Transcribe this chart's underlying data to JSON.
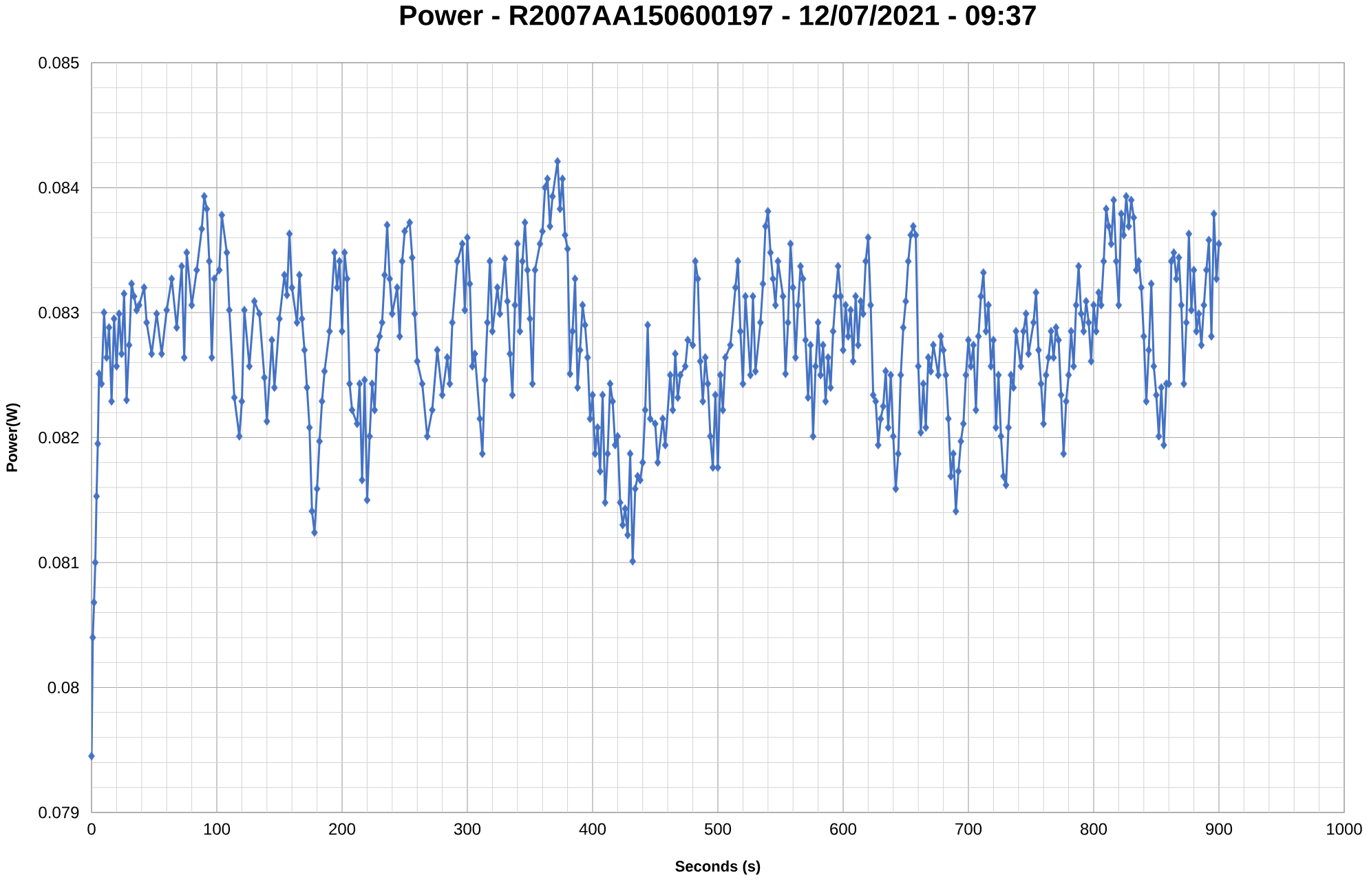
{
  "chart_data": {
    "type": "line",
    "title": "Power - R2007AA150600197 - 12/07/2021 - 09:37",
    "xlabel": "Seconds (s)",
    "ylabel": "Power(W)",
    "x": [
      0,
      1,
      2,
      3,
      4,
      5,
      6,
      8,
      10,
      12,
      14,
      16,
      18,
      20,
      22,
      24,
      26,
      28,
      30,
      32,
      34,
      36,
      38,
      42,
      44,
      48,
      52,
      56,
      60,
      64,
      68,
      72,
      74,
      76,
      80,
      84,
      88,
      90,
      92,
      94,
      96,
      98,
      102,
      104,
      108,
      110,
      114,
      118,
      120,
      122,
      126,
      130,
      134,
      138,
      140,
      144,
      146,
      150,
      154,
      156,
      158,
      160,
      164,
      166,
      168,
      170,
      172,
      174,
      176,
      178,
      180,
      182,
      184,
      186,
      190,
      194,
      196,
      198,
      200,
      202,
      204,
      206,
      208,
      212,
      214,
      216,
      218,
      220,
      222,
      224,
      226,
      228,
      230,
      232,
      234,
      236,
      238,
      240,
      244,
      246,
      248,
      250,
      254,
      256,
      258,
      260,
      264,
      268,
      272,
      276,
      280,
      284,
      286,
      288,
      292,
      296,
      298,
      300,
      302,
      304,
      306,
      310,
      312,
      314,
      316,
      318,
      320,
      324,
      326,
      330,
      332,
      334,
      336,
      338,
      340,
      342,
      344,
      346,
      348,
      350,
      352,
      354,
      358,
      360,
      362,
      364,
      366,
      368,
      372,
      374,
      376,
      378,
      380,
      382,
      384,
      386,
      388,
      390,
      392,
      394,
      396,
      398,
      400,
      402,
      404,
      406,
      408,
      410,
      412,
      414,
      416,
      418,
      420,
      422,
      424,
      426,
      428,
      430,
      432,
      434,
      436,
      438,
      440,
      442,
      444,
      446,
      450,
      452,
      456,
      458,
      462,
      464,
      466,
      468,
      470,
      474,
      476,
      480,
      482,
      484,
      486,
      488,
      490,
      492,
      494,
      496,
      498,
      500,
      502,
      504,
      506,
      510,
      514,
      516,
      518,
      520,
      522,
      526,
      528,
      530,
      534,
      536,
      538,
      540,
      542,
      544,
      546,
      548,
      552,
      554,
      556,
      558,
      560,
      562,
      564,
      566,
      568,
      570,
      572,
      574,
      576,
      578,
      580,
      582,
      584,
      586,
      588,
      590,
      592,
      594,
      596,
      598,
      600,
      602,
      604,
      606,
      608,
      610,
      612,
      614,
      616,
      618,
      620,
      622,
      624,
      626,
      628,
      630,
      632,
      634,
      636,
      638,
      640,
      642,
      644,
      646,
      648,
      650,
      652,
      654,
      656,
      658,
      660,
      662,
      664,
      666,
      668,
      670,
      672,
      676,
      678,
      680,
      682,
      684,
      686,
      688,
      690,
      692,
      694,
      696,
      698,
      700,
      702,
      704,
      706,
      708,
      710,
      712,
      714,
      716,
      718,
      720,
      722,
      724,
      726,
      728,
      730,
      732,
      734,
      736,
      738,
      742,
      744,
      746,
      748,
      752,
      754,
      756,
      758,
      760,
      762,
      764,
      766,
      768,
      770,
      772,
      774,
      776,
      778,
      780,
      782,
      784,
      786,
      788,
      790,
      792,
      794,
      796,
      798,
      800,
      802,
      804,
      806,
      808,
      810,
      812,
      814,
      816,
      818,
      820,
      822,
      824,
      826,
      828,
      830,
      832,
      834,
      836,
      838,
      840,
      842,
      844,
      846,
      848,
      850,
      852,
      854,
      856,
      858,
      860,
      862,
      864,
      866,
      868,
      870,
      872,
      874,
      876,
      878,
      880,
      882,
      884,
      886,
      888,
      890,
      892,
      894,
      896,
      898,
      900
    ],
    "series": [
      {
        "color": "#4472c4",
        "values": [
          0.07945,
          0.0804,
          0.08068,
          0.081,
          0.08153,
          0.08195,
          0.08251,
          0.08243,
          0.083,
          0.08264,
          0.08288,
          0.08229,
          0.08295,
          0.08257,
          0.08299,
          0.08267,
          0.08315,
          0.0823,
          0.08274,
          0.08323,
          0.08313,
          0.08302,
          0.08306,
          0.0832,
          0.08292,
          0.08267,
          0.08299,
          0.08267,
          0.08302,
          0.08327,
          0.08288,
          0.08337,
          0.08264,
          0.08348,
          0.08306,
          0.08334,
          0.08367,
          0.08393,
          0.08383,
          0.08341,
          0.08264,
          0.08327,
          0.08334,
          0.08378,
          0.08348,
          0.08302,
          0.08232,
          0.08201,
          0.08229,
          0.08302,
          0.08257,
          0.08309,
          0.08299,
          0.08248,
          0.08213,
          0.08278,
          0.0824,
          0.08295,
          0.0833,
          0.08314,
          0.08363,
          0.0832,
          0.08292,
          0.0833,
          0.08295,
          0.0827,
          0.0824,
          0.08208,
          0.08141,
          0.08124,
          0.08159,
          0.08197,
          0.08229,
          0.08253,
          0.08285,
          0.08348,
          0.0832,
          0.08341,
          0.08285,
          0.08348,
          0.08327,
          0.08243,
          0.08222,
          0.08211,
          0.08243,
          0.08166,
          0.08246,
          0.0815,
          0.08201,
          0.08243,
          0.08222,
          0.0827,
          0.08281,
          0.08292,
          0.0833,
          0.0837,
          0.08327,
          0.08299,
          0.0832,
          0.08281,
          0.08341,
          0.08365,
          0.08372,
          0.08344,
          0.08299,
          0.08261,
          0.08243,
          0.08201,
          0.08222,
          0.0827,
          0.08234,
          0.08264,
          0.08243,
          0.08292,
          0.08341,
          0.08355,
          0.08302,
          0.0836,
          0.08323,
          0.08257,
          0.08267,
          0.08215,
          0.08187,
          0.08246,
          0.08292,
          0.08341,
          0.08285,
          0.0832,
          0.08299,
          0.08343,
          0.08309,
          0.08267,
          0.08234,
          0.08306,
          0.08355,
          0.08285,
          0.08341,
          0.08372,
          0.08334,
          0.08295,
          0.08243,
          0.08334,
          0.08355,
          0.08365,
          0.084,
          0.08407,
          0.08369,
          0.08393,
          0.08421,
          0.08383,
          0.08407,
          0.08362,
          0.08351,
          0.08251,
          0.08285,
          0.08327,
          0.0824,
          0.0827,
          0.08306,
          0.0829,
          0.08264,
          0.08215,
          0.08234,
          0.08187,
          0.08208,
          0.08173,
          0.08234,
          0.08148,
          0.08187,
          0.08243,
          0.08229,
          0.08194,
          0.08201,
          0.08148,
          0.0813,
          0.08143,
          0.08122,
          0.08187,
          0.08101,
          0.08159,
          0.08169,
          0.08166,
          0.0818,
          0.08222,
          0.0829,
          0.08215,
          0.08211,
          0.0818,
          0.08215,
          0.08194,
          0.0825,
          0.08222,
          0.08267,
          0.08232,
          0.0825,
          0.08257,
          0.08278,
          0.08274,
          0.08341,
          0.08327,
          0.08261,
          0.08229,
          0.08264,
          0.08243,
          0.08201,
          0.08176,
          0.08234,
          0.08176,
          0.0825,
          0.08222,
          0.08264,
          0.08274,
          0.0832,
          0.08341,
          0.08285,
          0.08243,
          0.08313,
          0.0825,
          0.08313,
          0.08253,
          0.08292,
          0.08323,
          0.08369,
          0.08381,
          0.08348,
          0.08327,
          0.08306,
          0.08341,
          0.08313,
          0.08251,
          0.08292,
          0.08355,
          0.0832,
          0.08264,
          0.08306,
          0.08337,
          0.08327,
          0.08278,
          0.08232,
          0.08274,
          0.08201,
          0.08257,
          0.08292,
          0.0825,
          0.08274,
          0.08229,
          0.08264,
          0.0824,
          0.08285,
          0.08313,
          0.08337,
          0.08313,
          0.0827,
          0.08306,
          0.08281,
          0.08302,
          0.08261,
          0.08313,
          0.08274,
          0.08309,
          0.08299,
          0.08341,
          0.0836,
          0.08306,
          0.08234,
          0.08229,
          0.08194,
          0.08215,
          0.08225,
          0.08253,
          0.08208,
          0.0825,
          0.08201,
          0.08159,
          0.08187,
          0.0825,
          0.08288,
          0.08309,
          0.08341,
          0.08362,
          0.08369,
          0.08362,
          0.08257,
          0.08204,
          0.08243,
          0.08208,
          0.08264,
          0.08253,
          0.08274,
          0.0825,
          0.08281,
          0.0827,
          0.0825,
          0.08215,
          0.08169,
          0.08187,
          0.08141,
          0.08173,
          0.08197,
          0.08211,
          0.0825,
          0.08278,
          0.08257,
          0.08274,
          0.08222,
          0.08281,
          0.08313,
          0.08332,
          0.08285,
          0.08306,
          0.08257,
          0.08278,
          0.08208,
          0.0825,
          0.08201,
          0.08169,
          0.08162,
          0.08208,
          0.0825,
          0.0824,
          0.08285,
          0.08257,
          0.08285,
          0.08299,
          0.08267,
          0.08292,
          0.08316,
          0.0827,
          0.08243,
          0.08211,
          0.0825,
          0.08264,
          0.08285,
          0.08264,
          0.08288,
          0.08278,
          0.08234,
          0.08187,
          0.08229,
          0.0825,
          0.08285,
          0.08257,
          0.08306,
          0.08337,
          0.08299,
          0.08285,
          0.08309,
          0.08292,
          0.08261,
          0.08306,
          0.08285,
          0.08316,
          0.08306,
          0.08341,
          0.08383,
          0.08369,
          0.08355,
          0.0839,
          0.08341,
          0.08306,
          0.08379,
          0.08362,
          0.08393,
          0.08369,
          0.0839,
          0.08376,
          0.08334,
          0.08341,
          0.0832,
          0.08281,
          0.08229,
          0.0827,
          0.08323,
          0.08257,
          0.08234,
          0.08201,
          0.0824,
          0.08194,
          0.08243,
          0.08243,
          0.08341,
          0.08348,
          0.08327,
          0.08344,
          0.08306,
          0.08243,
          0.08292,
          0.08363,
          0.08302,
          0.08334,
          0.08285,
          0.08299,
          0.08274,
          0.08306,
          0.08334,
          0.08358,
          0.08281,
          0.08379,
          0.08327,
          0.08355
        ]
      }
    ],
    "xlim": [
      0,
      1000
    ],
    "ylim": [
      0.079,
      0.085
    ],
    "xticks": [
      0,
      {
        "value": 20,
        "label": null
      },
      {
        "value": 40,
        "label": null
      },
      {
        "value": 60,
        "label": null
      },
      {
        "value": 80,
        "label": null
      },
      100,
      {
        "value": 120,
        "label": null
      },
      {
        "value": 140,
        "label": null
      },
      {
        "value": 160,
        "label": null
      },
      {
        "value": 180,
        "label": null
      },
      200,
      {
        "value": 220,
        "label": null
      },
      {
        "value": 240,
        "label": null
      },
      {
        "value": 260,
        "label": null
      },
      {
        "value": 280,
        "label": null
      },
      300,
      {
        "value": 320,
        "label": null
      },
      {
        "value": 340,
        "label": null
      },
      {
        "value": 360,
        "label": null
      },
      {
        "value": 380,
        "label": null
      },
      400,
      {
        "value": 420,
        "label": null
      },
      {
        "value": 440,
        "label": null
      },
      {
        "value": 460,
        "label": null
      },
      {
        "value": 480,
        "label": null
      },
      500,
      {
        "value": 520,
        "label": null
      },
      {
        "value": 540,
        "label": null
      },
      {
        "value": 560,
        "label": null
      },
      {
        "value": 580,
        "label": null
      },
      600,
      {
        "value": 620,
        "label": null
      },
      {
        "value": 640,
        "label": null
      },
      {
        "value": 660,
        "label": null
      },
      {
        "value": 680,
        "label": null
      },
      700,
      {
        "value": 720,
        "label": null
      },
      {
        "value": 740,
        "label": null
      },
      {
        "value": 760,
        "label": null
      },
      {
        "value": 780,
        "label": null
      },
      800,
      {
        "value": 820,
        "label": null
      },
      {
        "value": 840,
        "label": null
      },
      {
        "value": 860,
        "label": null
      },
      {
        "value": 880,
        "label": null
      },
      900,
      {
        "value": 920,
        "label": null
      },
      {
        "value": 940,
        "label": null
      },
      {
        "value": 960,
        "label": null
      },
      {
        "value": 980,
        "label": null
      },
      1000
    ],
    "yticks": [
      0.079,
      {
        "value": 0.0792,
        "label": null
      },
      {
        "value": 0.0794,
        "label": null
      },
      {
        "value": 0.0796,
        "label": null
      },
      {
        "value": 0.0798,
        "label": null
      },
      0.08,
      {
        "value": 0.0802,
        "label": null
      },
      {
        "value": 0.0804,
        "label": null
      },
      {
        "value": 0.0806,
        "label": null
      },
      {
        "value": 0.0808,
        "label": null
      },
      0.081,
      {
        "value": 0.0812,
        "label": null
      },
      {
        "value": 0.0814,
        "label": null
      },
      {
        "value": 0.0816,
        "label": null
      },
      {
        "value": 0.0818,
        "label": null
      },
      0.082,
      {
        "value": 0.0822,
        "label": null
      },
      {
        "value": 0.0824,
        "label": null
      },
      {
        "value": 0.0826,
        "label": null
      },
      {
        "value": 0.0828,
        "label": null
      },
      0.083,
      {
        "value": 0.0832,
        "label": null
      },
      {
        "value": 0.0834,
        "label": null
      },
      {
        "value": 0.0836,
        "label": null
      },
      {
        "value": 0.0838,
        "label": null
      },
      0.084,
      {
        "value": 0.0842,
        "label": null
      },
      {
        "value": 0.0844,
        "label": null
      },
      {
        "value": 0.0846,
        "label": null
      },
      {
        "value": 0.0848,
        "label": null
      },
      0.085
    ],
    "grid": true,
    "marker": "diamond",
    "line_style": "solid"
  }
}
